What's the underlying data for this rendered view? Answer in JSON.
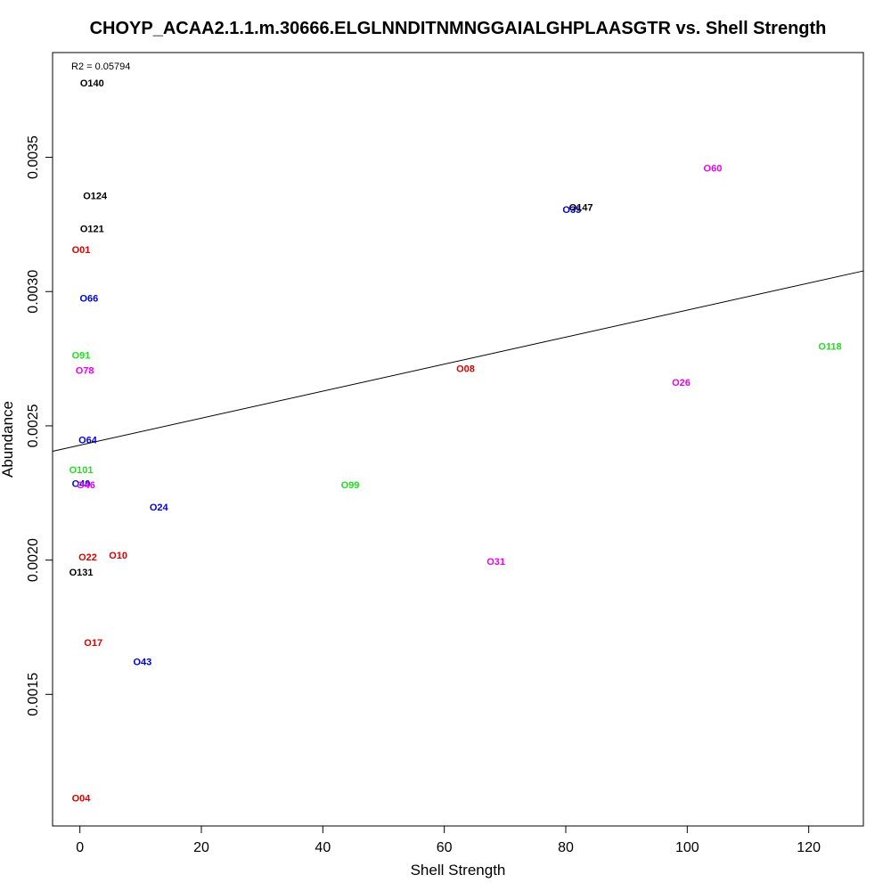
{
  "chart_data": {
    "type": "scatter",
    "title": "CHOYP_ACAA2.1.1.m.30666.ELGLNNDITNMNGGAIALGHPLAASGTR vs. Shell Strength",
    "xlabel": "Shell Strength",
    "ylabel": "Abundance",
    "annotation": "R2 = 0.05794",
    "xlim": [
      -4.5,
      129
    ],
    "ylim": [
      0.00101,
      0.00389
    ],
    "xticks": [
      0,
      20,
      40,
      60,
      80,
      100,
      120
    ],
    "xtick_labels": [
      "0",
      "20",
      "40",
      "60",
      "80",
      "100",
      "120"
    ],
    "yticks": [
      0.0015,
      0.002,
      0.0025,
      0.003,
      0.0035
    ],
    "ytick_labels": [
      "0.0015",
      "0.0020",
      "0.0025",
      "0.0030",
      "0.0035"
    ],
    "grid": false,
    "trendline": {
      "intercept": 0.002428,
      "slope": 5.03e-06
    },
    "points": [
      {
        "label": "O140",
        "x": 2.0,
        "y": 0.003778,
        "color": "#000000"
      },
      {
        "label": "O124",
        "x": 2.5,
        "y": 0.003357,
        "color": "#000000"
      },
      {
        "label": "O121",
        "x": 2.0,
        "y": 0.003234,
        "color": "#000000"
      },
      {
        "label": "O01",
        "x": 0.2,
        "y": 0.003157,
        "color": "#dd0000"
      },
      {
        "label": "O66",
        "x": 1.5,
        "y": 0.002976,
        "color": "#0000cc"
      },
      {
        "label": "O91",
        "x": 0.2,
        "y": 0.002763,
        "color": "#22dd22"
      },
      {
        "label": "O78",
        "x": 0.8,
        "y": 0.002707,
        "color": "#ee00ee"
      },
      {
        "label": "O64",
        "x": 1.3,
        "y": 0.002448,
        "color": "#0000cc"
      },
      {
        "label": "O101",
        "x": 0.2,
        "y": 0.002338,
        "color": "#22dd22"
      },
      {
        "label": "O40",
        "x": 0.2,
        "y": 0.002286,
        "color": "#0000cc"
      },
      {
        "label": "O46",
        "x": 1.0,
        "y": 0.00228,
        "color": "#ee00ee"
      },
      {
        "label": "O24",
        "x": 13.0,
        "y": 0.002198,
        "color": "#0000cc"
      },
      {
        "label": "O99",
        "x": 44.5,
        "y": 0.00228,
        "color": "#22dd22"
      },
      {
        "label": "O22",
        "x": 1.3,
        "y": 0.002012,
        "color": "#dd0000"
      },
      {
        "label": "O10",
        "x": 6.3,
        "y": 0.002018,
        "color": "#dd0000"
      },
      {
        "label": "O131",
        "x": 0.2,
        "y": 0.001955,
        "color": "#000000"
      },
      {
        "label": "O17",
        "x": 2.2,
        "y": 0.001694,
        "color": "#dd0000"
      },
      {
        "label": "O43",
        "x": 10.3,
        "y": 0.001622,
        "color": "#0000cc"
      },
      {
        "label": "O04",
        "x": 0.2,
        "y": 0.001115,
        "color": "#dd0000"
      },
      {
        "label": "O08",
        "x": 63.5,
        "y": 0.002713,
        "color": "#dd0000"
      },
      {
        "label": "O31",
        "x": 68.5,
        "y": 0.001995,
        "color": "#ee00ee"
      },
      {
        "label": "O35",
        "x": 81.0,
        "y": 0.003306,
        "color": "#0000cc"
      },
      {
        "label": "O147",
        "x": 82.5,
        "y": 0.003315,
        "color": "#000000"
      },
      {
        "label": "O60",
        "x": 104.2,
        "y": 0.00346,
        "color": "#ee00ee"
      },
      {
        "label": "O26",
        "x": 99.0,
        "y": 0.002663,
        "color": "#ee00ee"
      },
      {
        "label": "O118",
        "x": 123.5,
        "y": 0.002797,
        "color": "#22dd22"
      }
    ]
  }
}
